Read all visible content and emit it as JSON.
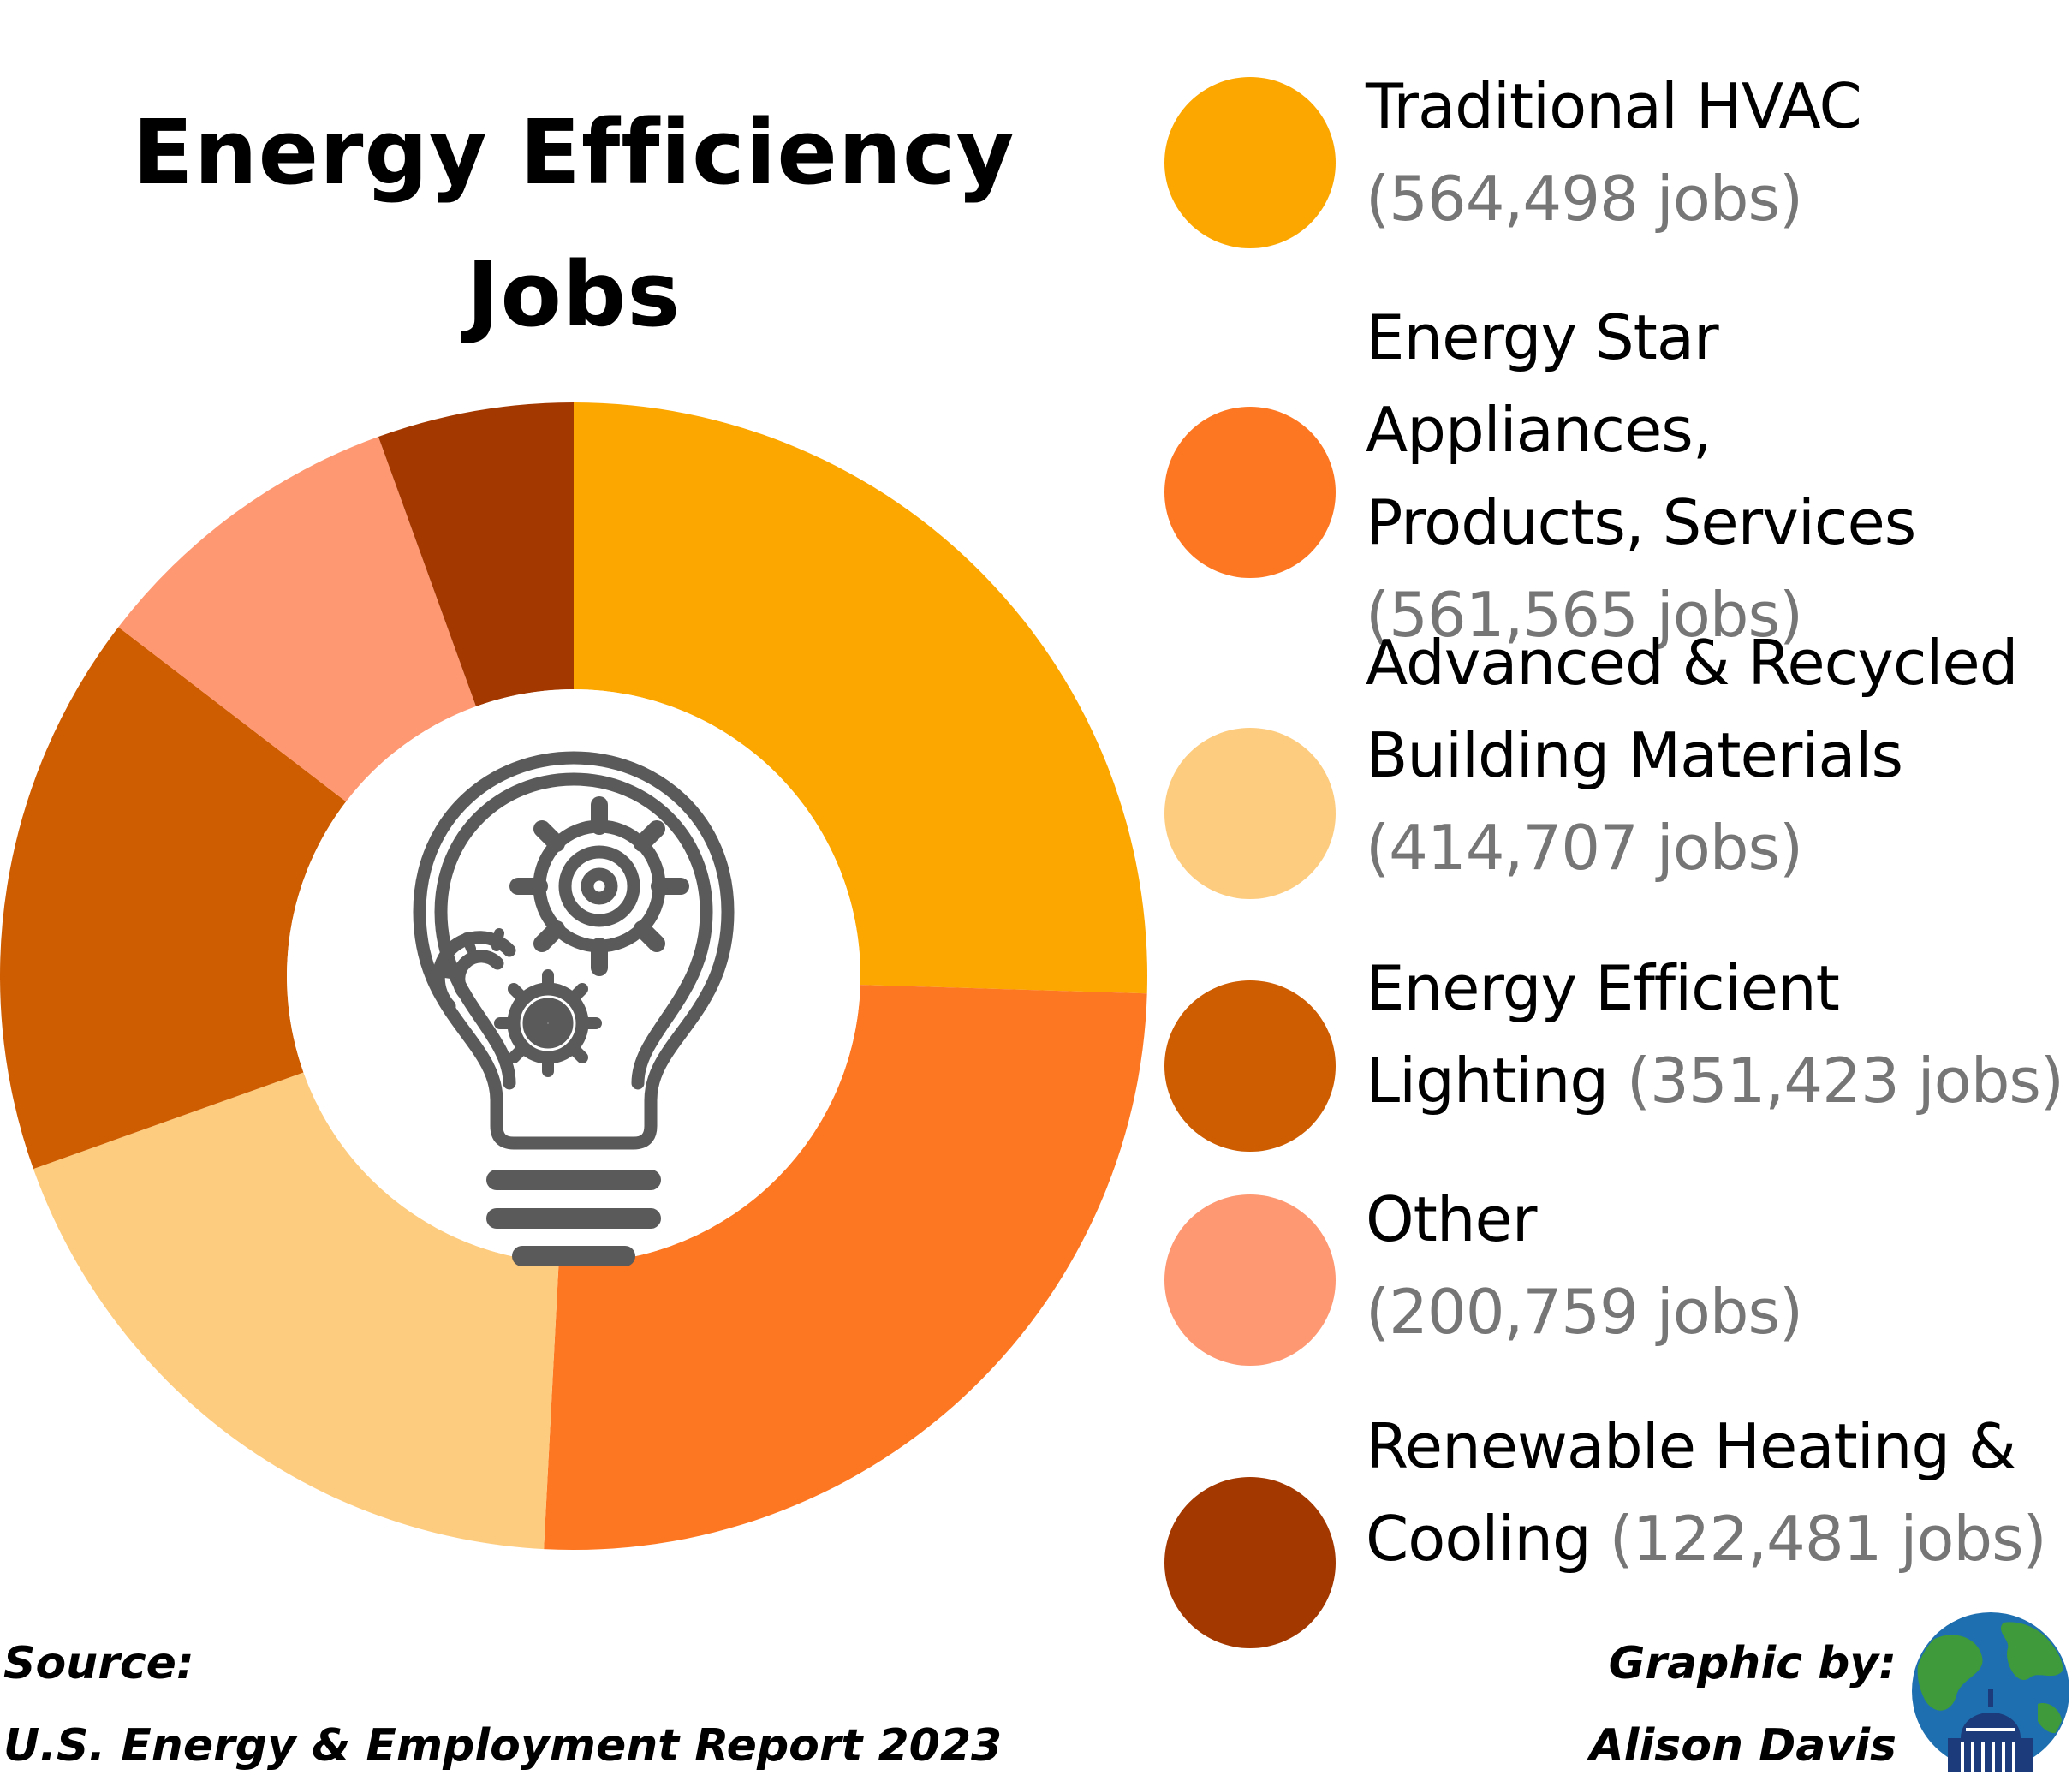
{
  "title_line1": "Energy Efficiency",
  "title_line2": "Jobs",
  "chart_data": {
    "type": "pie",
    "variant": "donut",
    "title": "Energy Efficiency Jobs",
    "series": [
      {
        "label": "Traditional HVAC",
        "value": 564498,
        "jobs_text": "(564,498 jobs)",
        "color": "#FCA600"
      },
      {
        "label": "Energy Star Appliances, Products, Services",
        "value": 561565,
        "jobs_text": "(561,565 jobs)",
        "color": "#FD7722"
      },
      {
        "label": "Advanced & Recycled Building Materials",
        "value": 414707,
        "jobs_text": "(414,707 jobs)",
        "color": "#FDCC7F"
      },
      {
        "label": "Energy Efficient Lighting",
        "value": 351423,
        "jobs_text": "(351,423 jobs)",
        "color": "#CE5C00"
      },
      {
        "label": "Other",
        "value": 200759,
        "jobs_text": "(200,759 jobs)",
        "color": "#FE9872"
      },
      {
        "label": "Renewable Heating & Cooling",
        "value": 122481,
        "jobs_text": "(122,481 jobs)",
        "color": "#A33800"
      }
    ]
  },
  "legend": [
    {
      "lines": [
        "Traditional HVAC"
      ],
      "jobs": "(564,498 jobs)"
    },
    {
      "lines": [
        "Energy Star Appliances,",
        "Products, Services"
      ],
      "jobs": "(561,565 jobs)"
    },
    {
      "lines": [
        "Advanced & Recycled",
        "Building Materials"
      ],
      "jobs": "(414,707 jobs)"
    },
    {
      "lines": [
        "Energy Efficient",
        "Lighting"
      ],
      "jobs": "(351,423 jobs)"
    },
    {
      "lines": [
        "Other"
      ],
      "jobs": "(200,759 jobs)"
    },
    {
      "lines": [
        "Renewable Heating &",
        "Cooling"
      ],
      "jobs": "(122,481 jobs)"
    }
  ],
  "center_icon": "lightbulb-gears-icon",
  "source_label": "Source:",
  "source_text": "U.S. Energy & Employment Report 2023",
  "credit_label": "Graphic by:",
  "credit_name": "Alison Davis",
  "credit_icon": "globe-capitol-icon",
  "colors": {
    "icon_gray": "#5A5A5A",
    "jobs_gray": "#767676"
  }
}
